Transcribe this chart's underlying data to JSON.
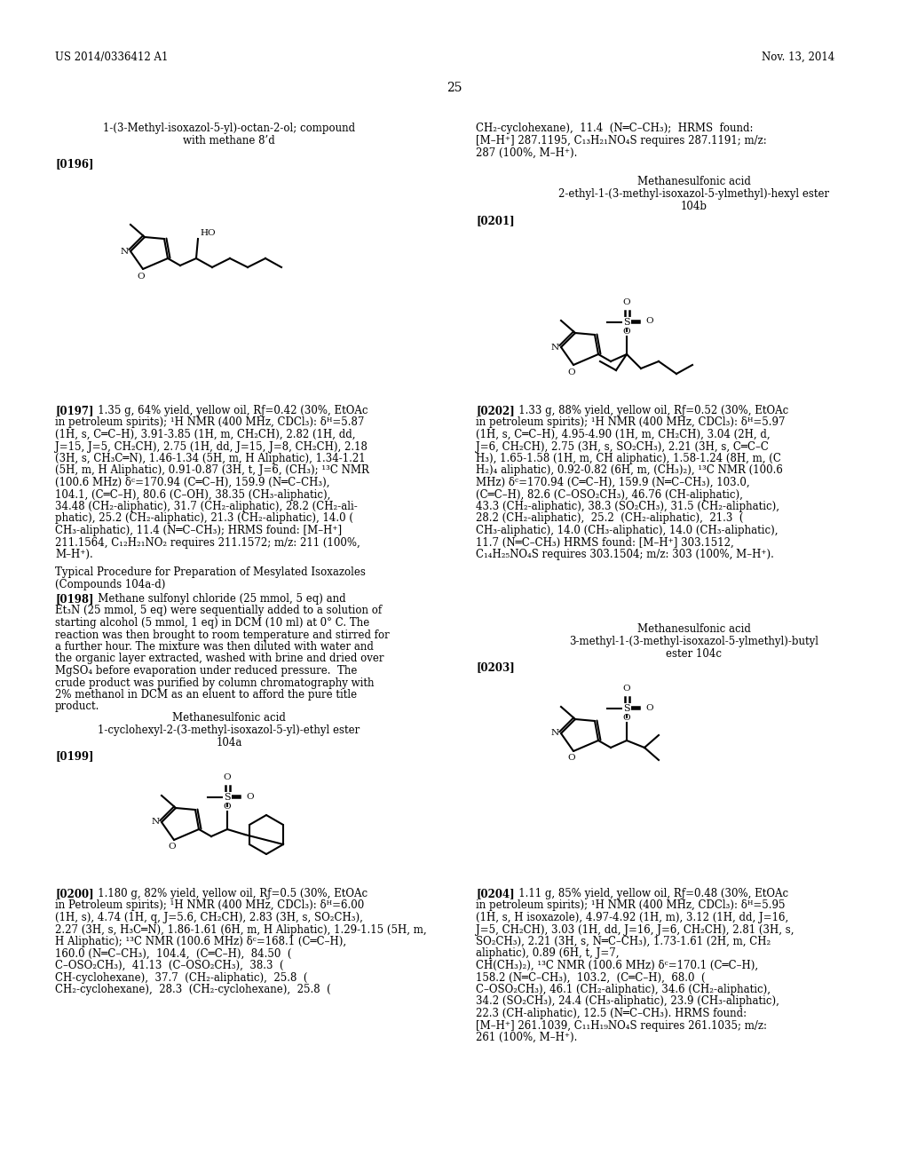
{
  "page_number": "25",
  "header_left": "US 2014/0336412 A1",
  "header_right": "Nov. 13, 2014",
  "background_color": "#ffffff",
  "text_color": "#000000"
}
